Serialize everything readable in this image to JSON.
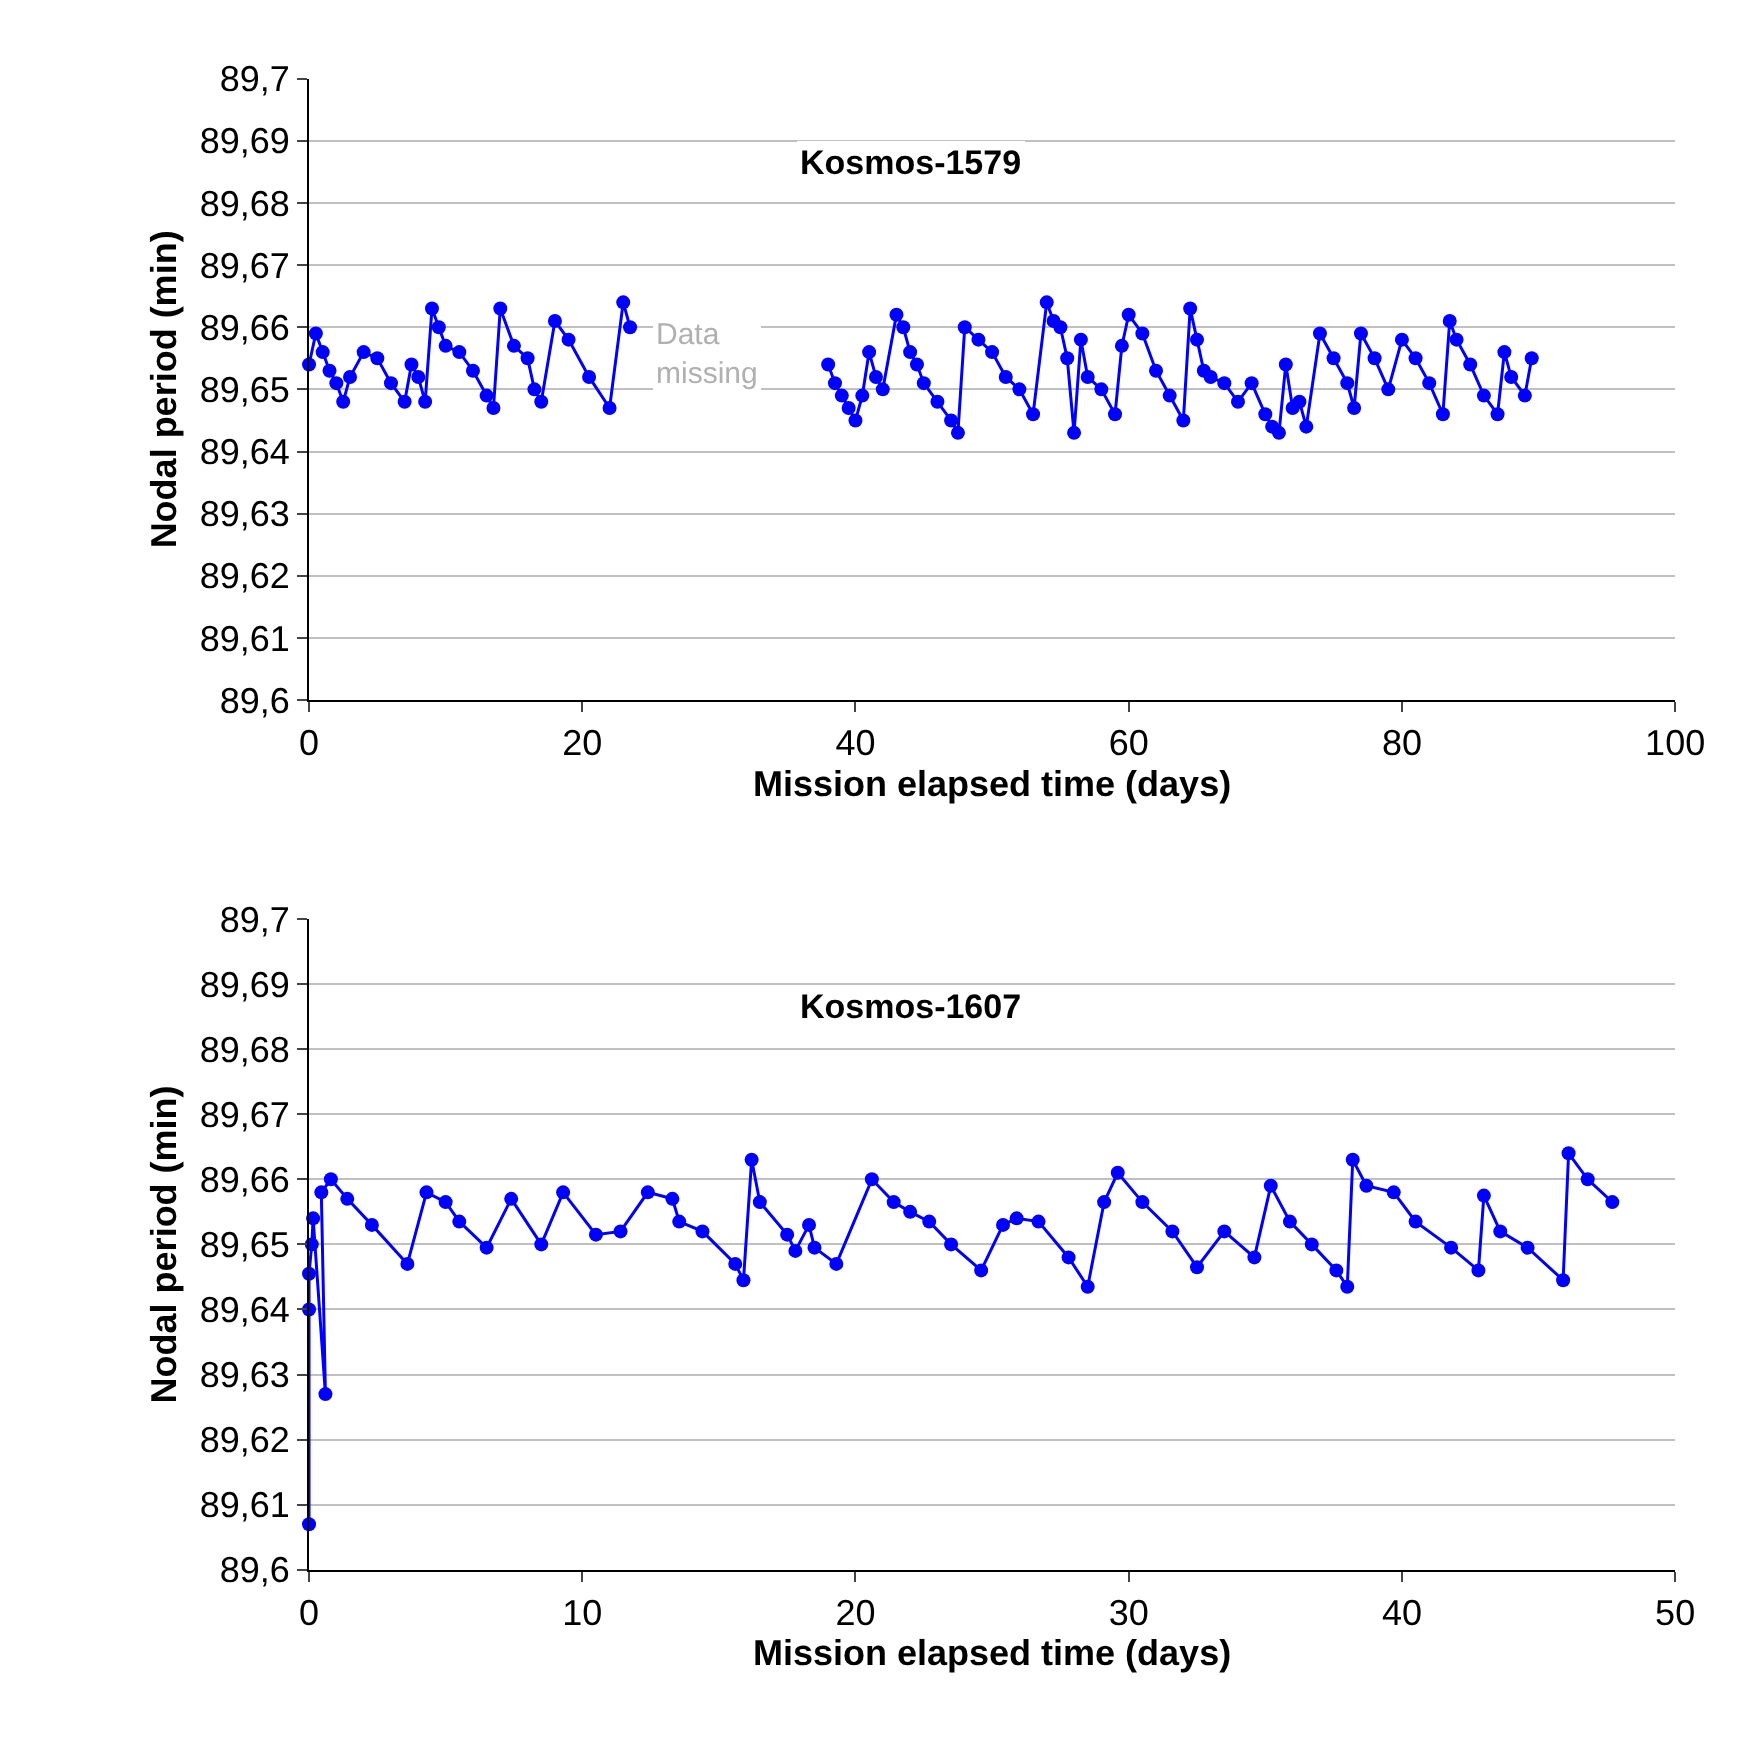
{
  "chart_data": [
    {
      "type": "line",
      "title": "Kosmos-1579",
      "xlabel": "Mission elapsed time (days)",
      "ylabel": "Nodal period (min)",
      "x": [
        0,
        0.5,
        1,
        1.5,
        2,
        2.5,
        3,
        4,
        5,
        6,
        7,
        7.5,
        8,
        8.5,
        9,
        9.5,
        10,
        11,
        12,
        13,
        13.5,
        14,
        15,
        16,
        16.5,
        17,
        18,
        19,
        20.5,
        22,
        23,
        23.5,
        30,
        38,
        38.5,
        39,
        39.5,
        40,
        40.5,
        41,
        41.5,
        42,
        43,
        43.5,
        44,
        44.5,
        45,
        46,
        47,
        47.5,
        48,
        49,
        50,
        51,
        52,
        53,
        54,
        54.5,
        55,
        55.5,
        56,
        56.5,
        57,
        58,
        59,
        59.5,
        60,
        61,
        62,
        63,
        64,
        64.5,
        65,
        65.5,
        66,
        67,
        68,
        69,
        70,
        70.5,
        71,
        71.5,
        72,
        72.5,
        73,
        74,
        75,
        76,
        76.5,
        77,
        78,
        79,
        80,
        81,
        82,
        83,
        83.5,
        84,
        85,
        86,
        87,
        87.5,
        88,
        89,
        89.5
      ],
      "series": [
        {
          "color": "#0000ff",
          "values": [
            89.654,
            89.659,
            89.656,
            89.653,
            89.651,
            89.648,
            89.652,
            89.656,
            89.655,
            89.651,
            89.648,
            89.654,
            89.652,
            89.648,
            89.663,
            89.66,
            89.657,
            89.656,
            89.653,
            89.649,
            89.647,
            89.663,
            89.657,
            89.655,
            89.65,
            89.648,
            89.661,
            89.658,
            89.652,
            89.647,
            89.664,
            89.66,
            null,
            89.654,
            89.651,
            89.649,
            89.647,
            89.645,
            89.649,
            89.656,
            89.652,
            89.65,
            89.662,
            89.66,
            89.656,
            89.654,
            89.651,
            89.648,
            89.645,
            89.643,
            89.66,
            89.658,
            89.656,
            89.652,
            89.65,
            89.646,
            89.664,
            89.661,
            89.66,
            89.655,
            89.643,
            89.658,
            89.652,
            89.65,
            89.646,
            89.657,
            89.662,
            89.659,
            89.653,
            89.649,
            89.645,
            89.663,
            89.658,
            89.653,
            89.652,
            89.651,
            89.648,
            89.651,
            89.646,
            89.644,
            89.643,
            89.654,
            89.647,
            89.648,
            89.644,
            89.659,
            89.655,
            89.651,
            89.647,
            89.659,
            89.655,
            89.65,
            89.658,
            89.655,
            89.651,
            89.646,
            89.661,
            89.658,
            89.654,
            89.649,
            89.646,
            89.656,
            89.652,
            89.649,
            89.655
          ]
        }
      ],
      "annotations": [
        "Data missing"
      ],
      "xlim": [
        0,
        100
      ],
      "xticks": [
        0,
        20,
        40,
        60,
        80,
        100
      ],
      "ylim": [
        89.6,
        89.7
      ],
      "yticks": [
        {
          "value": 89.6,
          "label": "89,6"
        },
        {
          "value": 89.61,
          "label": "89,61"
        },
        {
          "value": 89.62,
          "label": "89,62"
        },
        {
          "value": 89.63,
          "label": "89,63"
        },
        {
          "value": 89.64,
          "label": "89,64"
        },
        {
          "value": 89.65,
          "label": "89,65"
        },
        {
          "value": 89.66,
          "label": "89,66"
        },
        {
          "value": 89.67,
          "label": "89,67"
        },
        {
          "value": 89.68,
          "label": "89,68"
        },
        {
          "value": 89.69,
          "label": "89,69"
        },
        {
          "value": 89.7,
          "label": "89,7"
        }
      ],
      "grid": "y",
      "marker": "circle",
      "line_style": "solid"
    },
    {
      "type": "line",
      "title": "Kosmos-1607",
      "xlabel": "Mission elapsed time (days)",
      "ylabel": "Nodal period (min)",
      "x": [
        0,
        0,
        0,
        0.1,
        0.15,
        0.6,
        0.45,
        0.8,
        1.4,
        2.3,
        3.6,
        4.3,
        5.0,
        5.5,
        6.5,
        7.4,
        8.5,
        9.3,
        10.5,
        11.4,
        12.4,
        13.3,
        13.55,
        14.4,
        15.6,
        15.9,
        16.2,
        16.5,
        17.5,
        17.8,
        18.3,
        18.5,
        19.3,
        20.6,
        21.4,
        22.0,
        22.7,
        23.5,
        24.6,
        25.4,
        25.9,
        26.7,
        27.8,
        28.5,
        29.1,
        29.6,
        30.5,
        31.6,
        32.5,
        33.5,
        34.6,
        35.2,
        35.9,
        36.7,
        37.6,
        38.0,
        38.2,
        38.7,
        39.7,
        40.5,
        41.8,
        42.8,
        43.0,
        43.6,
        44.6,
        45.9,
        46.1,
        46.8,
        47.7
      ],
      "series": [
        {
          "color": "#0000ff",
          "values": [
            89.607,
            89.64,
            89.6455,
            89.65,
            89.654,
            89.627,
            89.658,
            89.66,
            89.657,
            89.653,
            89.647,
            89.658,
            89.6565,
            89.6535,
            89.6495,
            89.657,
            89.65,
            89.658,
            89.6515,
            89.652,
            89.658,
            89.657,
            89.6535,
            89.652,
            89.647,
            89.6445,
            89.663,
            89.6565,
            89.6515,
            89.649,
            89.653,
            89.6495,
            89.647,
            89.66,
            89.6565,
            89.655,
            89.6535,
            89.65,
            89.646,
            89.653,
            89.654,
            89.6535,
            89.648,
            89.6435,
            89.6565,
            89.661,
            89.6565,
            89.652,
            89.6465,
            89.652,
            89.648,
            89.659,
            89.6535,
            89.65,
            89.646,
            89.6435,
            89.663,
            89.659,
            89.658,
            89.6535,
            89.6495,
            89.646,
            89.6575,
            89.652,
            89.6495,
            89.6445,
            89.664,
            89.66,
            89.6565
          ]
        }
      ],
      "xlim": [
        0,
        50
      ],
      "xticks": [
        0,
        10,
        20,
        30,
        40,
        50
      ],
      "ylim": [
        89.6,
        89.7
      ],
      "yticks": [
        {
          "value": 89.6,
          "label": "89,6"
        },
        {
          "value": 89.61,
          "label": "89,61"
        },
        {
          "value": 89.62,
          "label": "89,62"
        },
        {
          "value": 89.63,
          "label": "89,63"
        },
        {
          "value": 89.64,
          "label": "89,64"
        },
        {
          "value": 89.65,
          "label": "89,65"
        },
        {
          "value": 89.66,
          "label": "89,66"
        },
        {
          "value": 89.67,
          "label": "89,67"
        },
        {
          "value": 89.68,
          "label": "89,68"
        },
        {
          "value": 89.69,
          "label": "89,69"
        },
        {
          "value": 89.7,
          "label": "89,7"
        }
      ],
      "grid": "y",
      "marker": "circle",
      "line_style": "solid"
    }
  ]
}
